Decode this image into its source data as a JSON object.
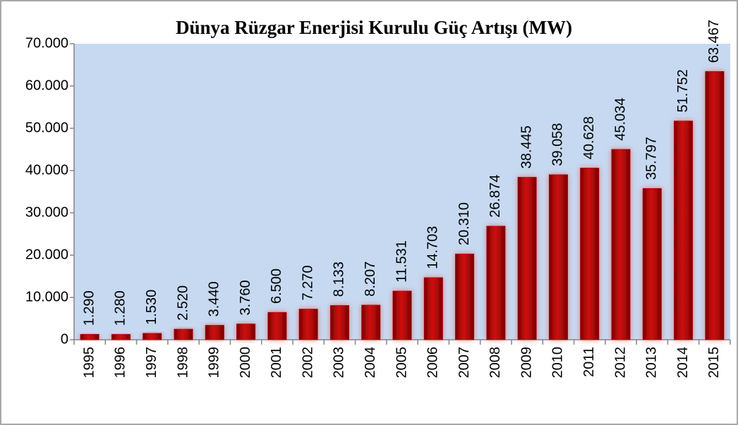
{
  "chart_data": {
    "type": "bar",
    "title": "Dünya Rüzgar Enerjisi Kurulu Güç Artışı (MW)",
    "categories": [
      "1995",
      "1996",
      "1997",
      "1998",
      "1999",
      "2000",
      "2001",
      "2002",
      "2003",
      "2004",
      "2005",
      "2006",
      "2007",
      "2008",
      "2009",
      "2010",
      "2011",
      "2012",
      "2013",
      "2014",
      "2015"
    ],
    "values": [
      1290,
      1280,
      1530,
      2520,
      3440,
      3760,
      6500,
      7270,
      8133,
      8207,
      11531,
      14703,
      20310,
      26874,
      38445,
      39058,
      40628,
      45034,
      35797,
      51752,
      63467
    ],
    "value_labels": [
      "1.290",
      "1.280",
      "1.530",
      "2.520",
      "3.440",
      "3.760",
      "6.500",
      "7.270",
      "8.133",
      "8.207",
      "11.531",
      "14.703",
      "20.310",
      "26.874",
      "38.445",
      "39.058",
      "40.628",
      "45.034",
      "35.797",
      "51.752",
      "63.467"
    ],
    "color": "#c00000",
    "ylim": [
      0,
      70000
    ],
    "yticks": [
      0,
      {
        "value": 10000,
        "label": "10.000"
      },
      {
        "value": 20000,
        "label": "20.000"
      },
      {
        "value": 30000,
        "label": "30.000"
      },
      {
        "value": 40000,
        "label": "40.000"
      },
      {
        "value": 50000,
        "label": "50.000"
      },
      {
        "value": 60000,
        "label": "60.000"
      },
      {
        "value": 70000,
        "label": "70.000"
      }
    ],
    "grid": false
  }
}
